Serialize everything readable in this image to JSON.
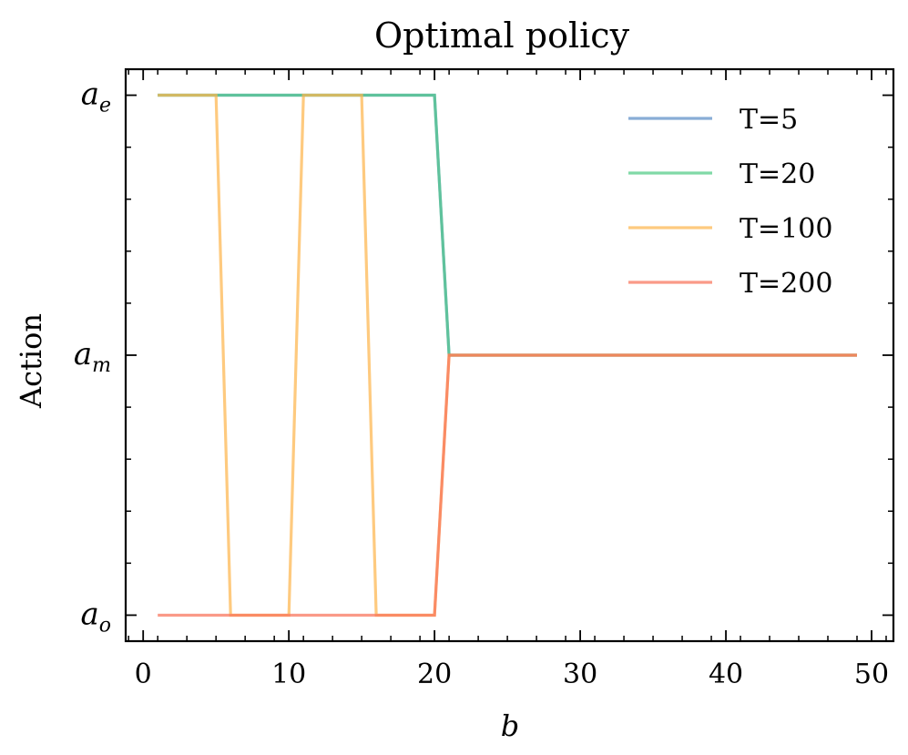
{
  "chart_data": {
    "type": "line",
    "title": "Optimal policy",
    "xlabel": "b",
    "ylabel": "Action",
    "xlim": [
      -1.2,
      51.5
    ],
    "ylim": [
      -0.1,
      2.1
    ],
    "x_ticks": [
      0,
      10,
      20,
      30,
      40,
      50
    ],
    "x_tick_labels": [
      "0",
      "10",
      "20",
      "30",
      "40",
      "50"
    ],
    "y_ticks": [
      {
        "value": 2,
        "base": "a",
        "sub": "e"
      },
      {
        "value": 1,
        "base": "a",
        "sub": "m"
      },
      {
        "value": 0,
        "base": "a",
        "sub": "o"
      }
    ],
    "legend_position": "top-right",
    "series": [
      {
        "name": "T=5",
        "color": "#5b8dc6",
        "points": [
          [
            1,
            2
          ],
          [
            20,
            2
          ],
          [
            21,
            1
          ],
          [
            49,
            1
          ]
        ]
      },
      {
        "name": "T=20",
        "color": "#4fcb85",
        "points": [
          [
            1,
            2
          ],
          [
            20,
            2
          ],
          [
            21,
            1
          ],
          [
            49,
            1
          ]
        ]
      },
      {
        "name": "T=100",
        "color": "#fdb54e",
        "points": [
          [
            1,
            2
          ],
          [
            5,
            2
          ],
          [
            6,
            0
          ],
          [
            10,
            0
          ],
          [
            11,
            2
          ],
          [
            15,
            2
          ],
          [
            16,
            0
          ],
          [
            20,
            0
          ],
          [
            21,
            1
          ],
          [
            49,
            1
          ]
        ]
      },
      {
        "name": "T=200",
        "color": "#f8735a",
        "points": [
          [
            1,
            0
          ],
          [
            20,
            0
          ],
          [
            21,
            1
          ],
          [
            49,
            1
          ]
        ]
      }
    ]
  }
}
